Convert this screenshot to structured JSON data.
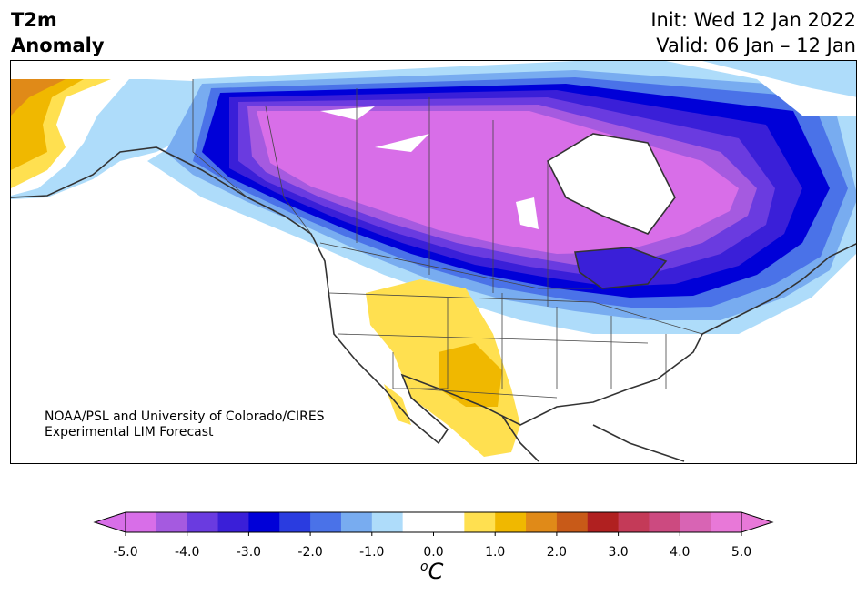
{
  "header": {
    "title_line1": "T2m",
    "title_line2": "Anomaly",
    "init": "Init: Wed 12 Jan 2022",
    "valid": "Valid: 06 Jan – 12 Jan"
  },
  "credit": {
    "line1": "NOAA/PSL and University of Colorado/CIRES",
    "line2": "Experimental LIM Forecast"
  },
  "colorbar": {
    "unit_sup": "o",
    "unit": "C",
    "ticks": [
      "-5.0",
      "-4.0",
      "-3.0",
      "-2.0",
      "-1.0",
      "0.0",
      "1.0",
      "2.0",
      "3.0",
      "4.0",
      "5.0"
    ],
    "tick_values": [
      -5,
      -4,
      -3,
      -2,
      -1,
      0,
      1,
      2,
      3,
      4,
      5
    ],
    "min": -5,
    "max": 5,
    "extend": "both",
    "colors": [
      "#d86ee8",
      "#a55ae0",
      "#6a3be0",
      "#3a1fd8",
      "#0000d8",
      "#2a3ce0",
      "#4a72e8",
      "#78acf0",
      "#aedcfa",
      "#ffffff",
      "#ffffff",
      "#ffe050",
      "#f0b800",
      "#e08a18",
      "#c85a18",
      "#b02020",
      "#c43a58",
      "#cc4a80",
      "#d864b4",
      "#e878d8"
    ]
  }
}
